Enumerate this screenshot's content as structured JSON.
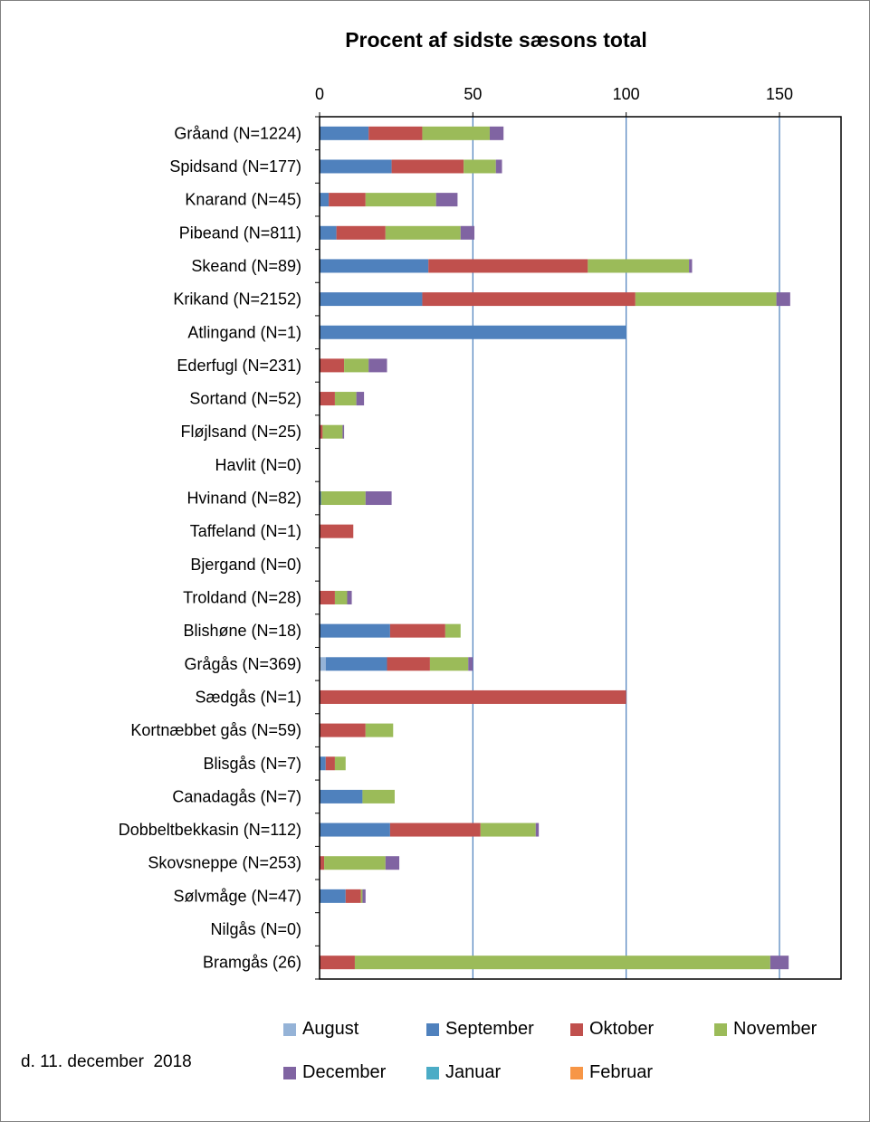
{
  "chart_data": {
    "type": "bar",
    "orientation": "horizontal",
    "stacked": true,
    "title": "Procent af sidste sæsons total",
    "xlabel": "",
    "ylabel": "",
    "xlim": [
      0,
      170
    ],
    "xticks": [
      0,
      50,
      100,
      150
    ],
    "grid": "vertical",
    "legend_position": "bottom",
    "categories": [
      "Gråand (N=1224)",
      "Spidsand (N=177)",
      "Knarand (N=45)",
      "Pibeand (N=811)",
      "Skeand (N=89)",
      "Krikand (N=2152)",
      "Atlingand (N=1)",
      "Ederfugl (N=231)",
      "Sortand (N=52)",
      "Fløjlsand (N=25)",
      "Havlit (N=0)",
      "Hvinand (N=82)",
      "Taffeland (N=1)",
      "Bjergand (N=0)",
      "Troldand (N=28)",
      "Blishøne (N=18)",
      "Grågås (N=369)",
      "Sædgås (N=1)",
      "Kortnæbbet gås (N=59)",
      "Blisgås (N=7)",
      "Canadagås (N=7)",
      "Dobbeltbekkasin (N=112)",
      "Skovsneppe (N=253)",
      "Sølvmåge (N=47)",
      "Nilgås (N=0)",
      "Bramgås (26)"
    ],
    "series": [
      {
        "name": "August",
        "color": "#95b3d7",
        "values": [
          0,
          0,
          0,
          0,
          0,
          0,
          0,
          0,
          0,
          0,
          0,
          0,
          0,
          0,
          0,
          0,
          2,
          0,
          0,
          0,
          0,
          0,
          0,
          0,
          0,
          0
        ]
      },
      {
        "name": "September",
        "color": "#4f81bd",
        "values": [
          16,
          23.5,
          3,
          5.5,
          35.5,
          33.5,
          100,
          0,
          0,
          0,
          0,
          0.5,
          0,
          0,
          0,
          23,
          20,
          0,
          0,
          2,
          14,
          23,
          0,
          8.5,
          0,
          0
        ]
      },
      {
        "name": "Oktober",
        "color": "#c0504d",
        "values": [
          17.5,
          23.5,
          12,
          16,
          52,
          69.5,
          0,
          8,
          5,
          1,
          0,
          0,
          11,
          0,
          5,
          18,
          14,
          100,
          15,
          3,
          0,
          29.5,
          1.5,
          5,
          0,
          11.5
        ]
      },
      {
        "name": "November",
        "color": "#9bbb59",
        "values": [
          22,
          10.5,
          23,
          24.5,
          33,
          46,
          0,
          8,
          7,
          6.5,
          0,
          14.5,
          0,
          0,
          4,
          5,
          12.5,
          0,
          9,
          3.5,
          10.5,
          18,
          20,
          0.5,
          0,
          135.5
        ]
      },
      {
        "name": "December",
        "color": "#8064a2",
        "values": [
          4.5,
          2,
          7,
          4.5,
          1,
          4.5,
          0,
          6,
          2.5,
          0.5,
          0,
          8.5,
          0,
          0,
          1.5,
          0,
          1.5,
          0,
          0,
          0,
          0,
          1,
          4.5,
          1,
          0,
          6
        ]
      },
      {
        "name": "Januar",
        "color": "#4bacc6",
        "values": [
          0,
          0,
          0,
          0,
          0,
          0,
          0,
          0,
          0,
          0,
          0,
          0,
          0,
          0,
          0,
          0,
          0,
          0,
          0,
          0,
          0,
          0,
          0,
          0,
          0,
          0
        ]
      },
      {
        "name": "Februar",
        "color": "#f79646",
        "values": [
          0,
          0,
          0,
          0,
          0,
          0,
          0,
          0,
          0,
          0,
          0,
          0,
          0,
          0,
          0,
          0,
          0,
          0,
          0,
          0,
          0,
          0,
          0,
          0,
          0,
          0
        ]
      }
    ]
  },
  "legend": {
    "items": [
      {
        "label": "August",
        "color": "#95b3d7"
      },
      {
        "label": "September",
        "color": "#4f81bd"
      },
      {
        "label": "Oktober",
        "color": "#c0504d"
      },
      {
        "label": "November",
        "color": "#9bbb59"
      },
      {
        "label": "December",
        "color": "#8064a2"
      },
      {
        "label": "Januar",
        "color": "#4bacc6"
      },
      {
        "label": "Februar",
        "color": "#f79646"
      }
    ]
  },
  "footer": {
    "date": "d. 11. december  2018"
  }
}
